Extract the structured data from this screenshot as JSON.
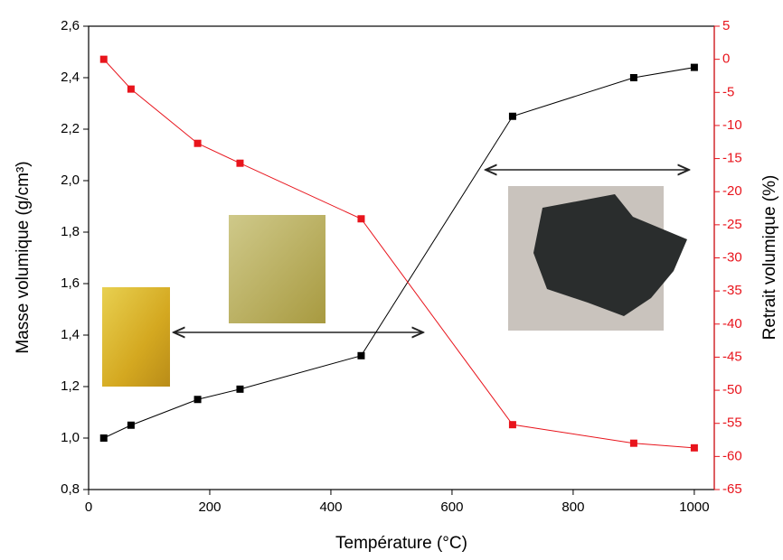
{
  "chart_data": {
    "type": "line",
    "x_label": "Température (°C)",
    "y_label": "Masse volumique (g/cm³)",
    "y2_label": "Retrait volumique (%)",
    "x": [
      25,
      70,
      180,
      250,
      450,
      700,
      900,
      1000
    ],
    "series": [
      {
        "name": "Masse volumique",
        "color": "#000000",
        "values": [
          1.0,
          1.05,
          1.15,
          1.19,
          1.32,
          2.25,
          2.4,
          2.44
        ]
      },
      {
        "name": "Retrait volumique",
        "color": "#e8141c",
        "axis": "y2",
        "values": [
          0,
          -4.5,
          -12.7,
          -15.7,
          -24.1,
          -55.2,
          -58,
          -58.7
        ]
      }
    ],
    "xlim": [
      0,
      1033
    ],
    "xticks": [
      0,
      200,
      400,
      600,
      800,
      1000
    ],
    "ylim": [
      0.8,
      2.6
    ],
    "yticks": [
      {
        "value": 0.8,
        "label": "0,8"
      },
      {
        "value": 1.0,
        "label": "1,0"
      },
      {
        "value": 1.2,
        "label": "1,2"
      },
      {
        "value": 1.4,
        "label": "1,4"
      },
      {
        "value": 1.6,
        "label": "1,6"
      },
      {
        "value": 1.8,
        "label": "1,8"
      },
      {
        "value": 2.0,
        "label": "2,0"
      },
      {
        "value": 2.2,
        "label": "2,2"
      },
      {
        "value": 2.4,
        "label": "2,4"
      },
      {
        "value": 2.6,
        "label": "2,6"
      }
    ],
    "y2lim": [
      -65,
      5
    ],
    "y2ticks": [
      -65,
      -60,
      -55,
      -50,
      -45,
      -40,
      -35,
      -30,
      -25,
      -20,
      -15,
      -10,
      -5,
      0,
      5
    ]
  }
}
